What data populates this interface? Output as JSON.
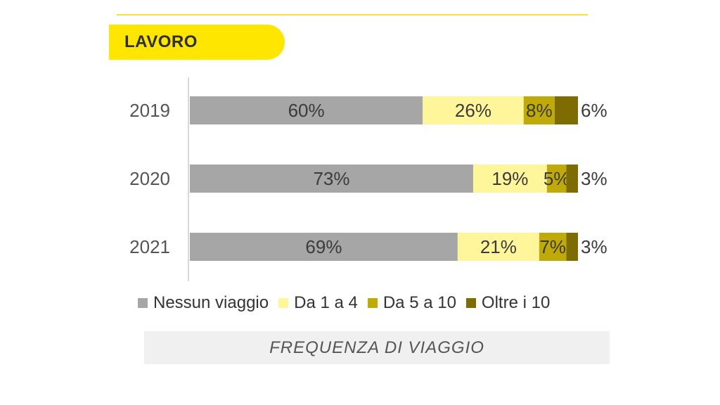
{
  "header": {
    "title": "LAVORO"
  },
  "footer": {
    "caption": "FREQUENZA DI VIAGGIO"
  },
  "colors": {
    "accent": "#ffe600",
    "rule": "#f5e04a"
  },
  "chart_data": {
    "type": "bar",
    "orientation": "horizontal",
    "stacked": true,
    "categories": [
      "2019",
      "2020",
      "2021"
    ],
    "series": [
      {
        "name": "Nessun viaggio",
        "color": "#a6a6a6",
        "values": [
          60,
          73,
          69
        ]
      },
      {
        "name": "Da 1 a 4",
        "color": "#fff59a",
        "values": [
          26,
          19,
          21
        ]
      },
      {
        "name": "Da 5 a 10",
        "color": "#c0aa09",
        "values": [
          8,
          5,
          7
        ]
      },
      {
        "name": "Oltre i 10",
        "color": "#7f6c00",
        "values": [
          6,
          3,
          3
        ]
      }
    ],
    "value_suffix": "%",
    "xlim": [
      0,
      100
    ],
    "grid": false,
    "legend_position": "bottom"
  }
}
